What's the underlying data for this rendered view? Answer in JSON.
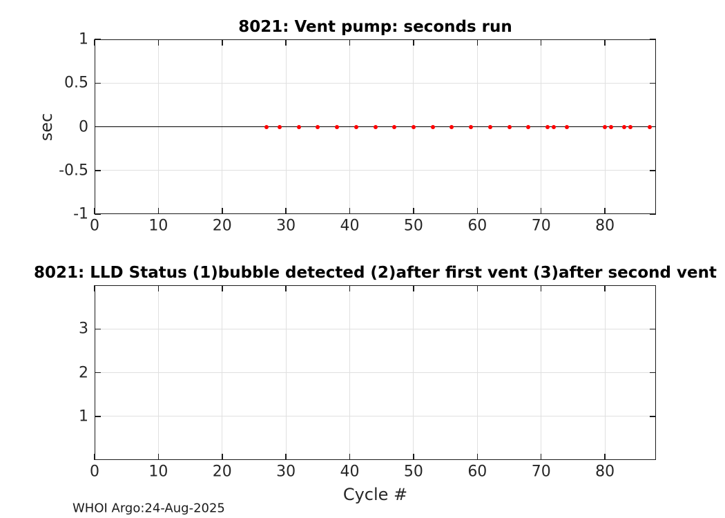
{
  "figure": {
    "footer": "WHOI Argo:24-Aug-2025",
    "colors": {
      "axis": "#1a1a1a",
      "grid": "#e0e0e0",
      "marker": "#ff0000",
      "zero_line": "#000000",
      "title": "#000000",
      "tick_label": "#262626"
    }
  },
  "chart_data": [
    {
      "type": "scatter",
      "title": "8021: Vent pump: seconds run",
      "xlabel": "",
      "ylabel": "sec",
      "xlim": [
        0,
        88
      ],
      "ylim": [
        -1,
        1
      ],
      "xticks": [
        0,
        10,
        20,
        30,
        40,
        50,
        60,
        70,
        80
      ],
      "yticks": [
        1,
        0.5,
        0,
        -0.5,
        -1
      ],
      "grid": true,
      "zero_line": true,
      "legend": "none",
      "series": [
        {
          "name": "vent-pump-seconds-run",
          "x": [
            27,
            29,
            32,
            35,
            38,
            41,
            44,
            47,
            50,
            53,
            56,
            59,
            62,
            65,
            68,
            71,
            72,
            74,
            80,
            81,
            83,
            84,
            87
          ],
          "y": [
            0,
            0,
            0,
            0,
            0,
            0,
            0,
            0,
            0,
            0,
            0,
            0,
            0,
            0,
            0,
            0,
            0,
            0,
            0,
            0,
            0,
            0,
            0
          ]
        }
      ]
    },
    {
      "type": "scatter",
      "title": "8021: LLD Status   (1)bubble detected   (2)after first vent  (3)after second vent",
      "xlabel": "Cycle #",
      "ylabel": "",
      "xlim": [
        0,
        88
      ],
      "ylim": [
        0,
        4
      ],
      "xticks": [
        0,
        10,
        20,
        30,
        40,
        50,
        60,
        70,
        80
      ],
      "yticks": [
        1,
        2,
        3
      ],
      "grid": true,
      "zero_line": false,
      "legend": "none",
      "series": [
        {
          "name": "lld-status",
          "x": [],
          "y": []
        }
      ]
    }
  ]
}
